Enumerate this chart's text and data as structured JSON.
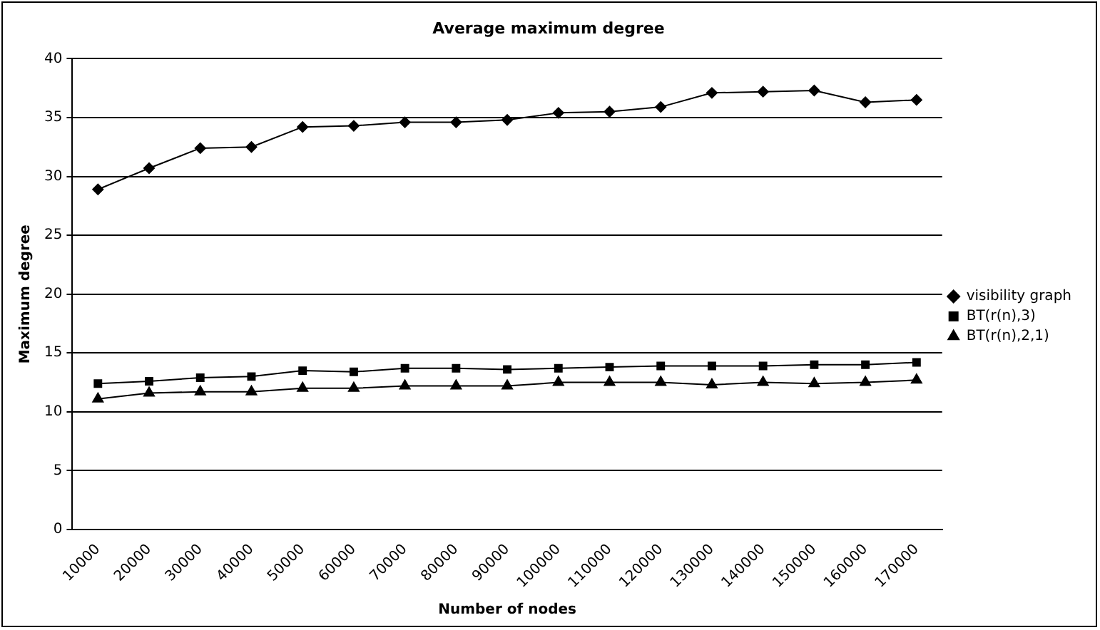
{
  "chart_data": {
    "type": "line",
    "title": "Average maximum degree",
    "xlabel": "Number of nodes",
    "ylabel": "Maximum degree",
    "categories": [
      "10000",
      "20000",
      "30000",
      "40000",
      "50000",
      "60000",
      "70000",
      "80000",
      "90000",
      "100000",
      "110000",
      "120000",
      "130000",
      "140000",
      "150000",
      "160000",
      "170000"
    ],
    "series": [
      {
        "name": "visibility graph",
        "color": "#000000",
        "marker": "diamond",
        "values": [
          28.9,
          30.7,
          32.4,
          32.5,
          34.2,
          34.3,
          34.6,
          34.6,
          34.8,
          35.4,
          35.5,
          35.9,
          37.1,
          37.2,
          37.3,
          36.3,
          36.5
        ]
      },
      {
        "name": "BT(r(n),3)",
        "color": "#000000",
        "marker": "square",
        "values": [
          12.4,
          12.6,
          12.9,
          13.0,
          13.5,
          13.4,
          13.7,
          13.7,
          13.6,
          13.7,
          13.8,
          13.9,
          13.9,
          13.9,
          14.0,
          14.0,
          14.2
        ]
      },
      {
        "name": "BT(r(n),2,1)",
        "color": "#000000",
        "marker": "triangle",
        "values": [
          11.1,
          11.6,
          11.7,
          11.7,
          12.0,
          12.0,
          12.2,
          12.2,
          12.2,
          12.5,
          12.5,
          12.5,
          12.3,
          12.5,
          12.4,
          12.5,
          12.7
        ]
      }
    ],
    "ylim": [
      0,
      40
    ],
    "yticks": [
      0,
      5,
      10,
      15,
      20,
      25,
      30,
      35,
      40
    ],
    "grid": "y",
    "legend": "right",
    "line_style": "solid"
  }
}
